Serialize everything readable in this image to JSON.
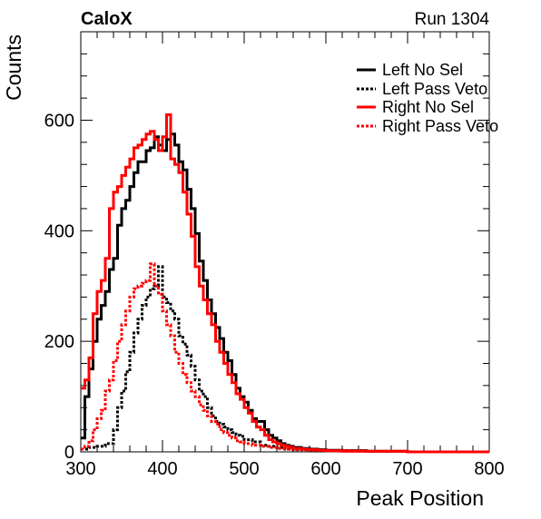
{
  "chart_data": {
    "type": "line",
    "title": "CaloX",
    "subtitle": "Run 1304",
    "xlabel": "Peak Position",
    "ylabel": "Counts",
    "xlim": [
      300,
      800
    ],
    "ylim": [
      0,
      760
    ],
    "xticks": [
      300,
      400,
      500,
      600,
      700,
      800
    ],
    "yticks": [
      0,
      200,
      400,
      600
    ],
    "grid": false,
    "legend_position": "top-right",
    "series": [
      {
        "name": "Left No Sel",
        "color": "#000000",
        "style": "solid",
        "x": [
          300,
          305,
          310,
          315,
          320,
          325,
          330,
          335,
          340,
          345,
          350,
          355,
          360,
          365,
          370,
          375,
          380,
          385,
          390,
          395,
          400,
          405,
          410,
          415,
          420,
          425,
          430,
          435,
          440,
          445,
          450,
          455,
          460,
          465,
          470,
          475,
          480,
          485,
          490,
          495,
          500,
          505,
          510,
          515,
          520,
          525,
          530,
          535,
          540,
          545,
          550,
          555,
          560,
          570,
          580,
          590,
          600,
          620,
          650,
          700,
          750,
          795
        ],
        "y": [
          25,
          100,
          150,
          200,
          240,
          265,
          290,
          330,
          350,
          410,
          440,
          455,
          480,
          505,
          525,
          525,
          545,
          550,
          570,
          555,
          545,
          565,
          575,
          555,
          525,
          510,
          475,
          440,
          395,
          345,
          310,
          275,
          250,
          225,
          205,
          180,
          165,
          140,
          115,
          100,
          90,
          75,
          60,
          55,
          55,
          40,
          30,
          25,
          20,
          15,
          12,
          10,
          8,
          6,
          5,
          4,
          3,
          2,
          1,
          0,
          0,
          0
        ]
      },
      {
        "name": "Left Pass Veto",
        "color": "#000000",
        "style": "dotted",
        "x": [
          300,
          310,
          320,
          330,
          340,
          345,
          350,
          355,
          360,
          365,
          370,
          375,
          380,
          385,
          390,
          395,
          400,
          405,
          410,
          415,
          420,
          425,
          430,
          435,
          440,
          445,
          450,
          455,
          460,
          465,
          470,
          475,
          480,
          485,
          490,
          495,
          500,
          510,
          520,
          530,
          540,
          550,
          560,
          580,
          600,
          650,
          700,
          795
        ],
        "y": [
          5,
          8,
          10,
          15,
          40,
          80,
          110,
          145,
          180,
          215,
          240,
          265,
          280,
          295,
          300,
          335,
          280,
          270,
          255,
          240,
          210,
          195,
          175,
          155,
          130,
          110,
          100,
          80,
          65,
          55,
          50,
          45,
          40,
          35,
          30,
          28,
          22,
          18,
          12,
          10,
          8,
          5,
          4,
          3,
          2,
          1,
          0,
          0
        ]
      },
      {
        "name": "Right No Sel",
        "color": "#ff0000",
        "style": "solid",
        "x": [
          300,
          305,
          310,
          315,
          320,
          325,
          330,
          335,
          340,
          345,
          350,
          355,
          360,
          365,
          370,
          375,
          380,
          385,
          390,
          395,
          400,
          405,
          410,
          415,
          420,
          425,
          430,
          435,
          440,
          445,
          450,
          455,
          460,
          465,
          470,
          475,
          480,
          485,
          490,
          495,
          500,
          505,
          510,
          515,
          520,
          525,
          530,
          535,
          540,
          545,
          550,
          555,
          560,
          570,
          580,
          590,
          600,
          620,
          650,
          700,
          750,
          795
        ],
        "y": [
          115,
          130,
          170,
          250,
          290,
          310,
          350,
          440,
          470,
          480,
          500,
          515,
          530,
          550,
          555,
          565,
          575,
          580,
          565,
          545,
          570,
          610,
          530,
          520,
          505,
          470,
          430,
          390,
          335,
          300,
          275,
          250,
          230,
          200,
          180,
          160,
          140,
          125,
          105,
          95,
          80,
          70,
          55,
          45,
          40,
          30,
          22,
          18,
          15,
          12,
          10,
          8,
          6,
          5,
          4,
          3,
          2,
          1,
          1,
          0,
          0,
          0
        ]
      },
      {
        "name": "Right Pass Veto",
        "color": "#ff0000",
        "style": "dotted",
        "x": [
          300,
          305,
          310,
          315,
          320,
          325,
          330,
          335,
          340,
          345,
          350,
          355,
          360,
          365,
          370,
          375,
          380,
          385,
          390,
          395,
          400,
          405,
          410,
          415,
          420,
          425,
          430,
          435,
          440,
          445,
          450,
          455,
          460,
          465,
          470,
          475,
          480,
          485,
          490,
          495,
          500,
          510,
          520,
          530,
          540,
          550,
          560,
          580,
          600,
          650,
          700,
          795
        ],
        "y": [
          5,
          10,
          20,
          40,
          60,
          75,
          110,
          130,
          165,
          200,
          230,
          255,
          280,
          295,
          300,
          305,
          310,
          340,
          300,
          285,
          255,
          230,
          210,
          180,
          160,
          140,
          125,
          110,
          100,
          85,
          75,
          65,
          55,
          50,
          40,
          35,
          30,
          25,
          20,
          18,
          15,
          12,
          10,
          8,
          6,
          5,
          4,
          3,
          2,
          1,
          0,
          0
        ]
      }
    ]
  }
}
